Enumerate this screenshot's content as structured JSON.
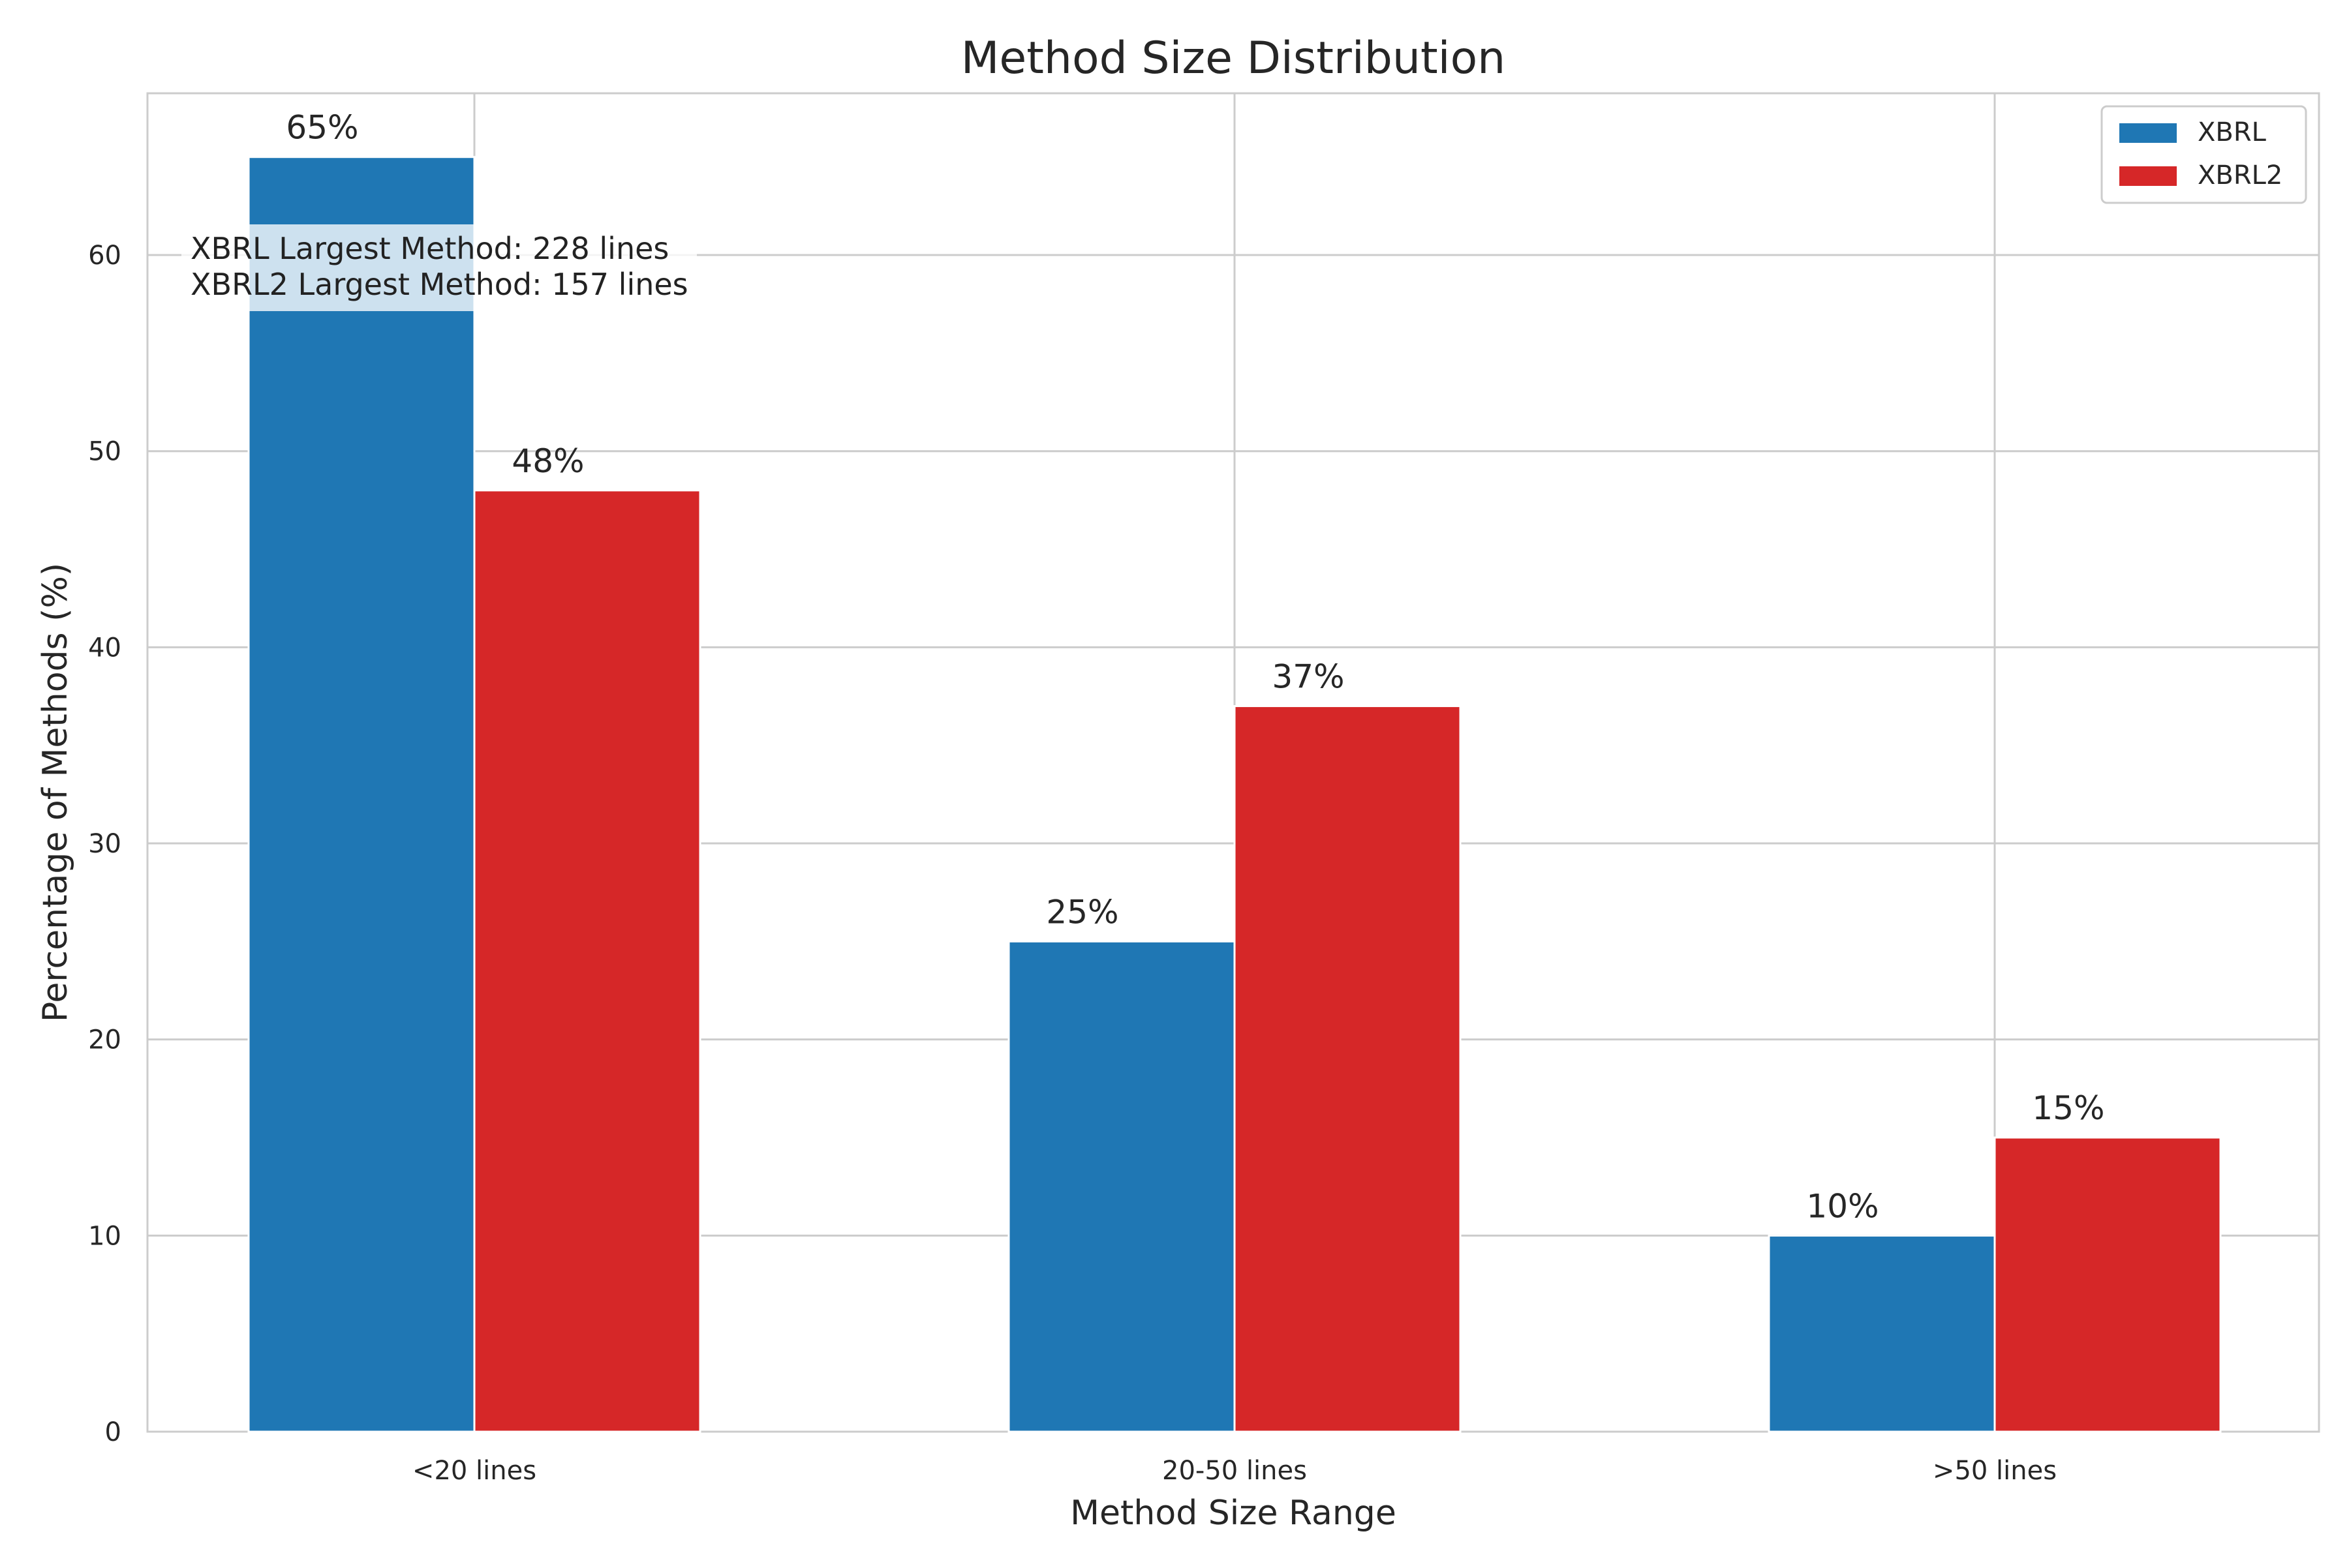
{
  "chart_data": {
    "type": "bar",
    "title": "Method Size Distribution",
    "xlabel": "Method Size Range",
    "ylabel": "Percentage of Methods (%)",
    "categories": [
      "<20 lines",
      "20-50 lines",
      ">50 lines"
    ],
    "series": [
      {
        "name": "XBRL",
        "values": [
          65,
          25,
          10
        ],
        "color": "#1f77b4"
      },
      {
        "name": "XBRL2",
        "values": [
          48,
          37,
          15
        ],
        "color": "#d62728"
      }
    ],
    "value_labels": {
      "XBRL": [
        "65%",
        "25%",
        "10%"
      ],
      "XBRL2": [
        "48%",
        "37%",
        "15%"
      ]
    },
    "ylim": [
      0,
      68.25
    ],
    "yticks": [
      0,
      10,
      20,
      30,
      40,
      50,
      60
    ],
    "grid": true,
    "legend_position": "top-right",
    "annotation": {
      "line1": "XBRL Largest Method: 228 lines",
      "line2": "XBRL2 Largest Method: 157 lines"
    }
  }
}
